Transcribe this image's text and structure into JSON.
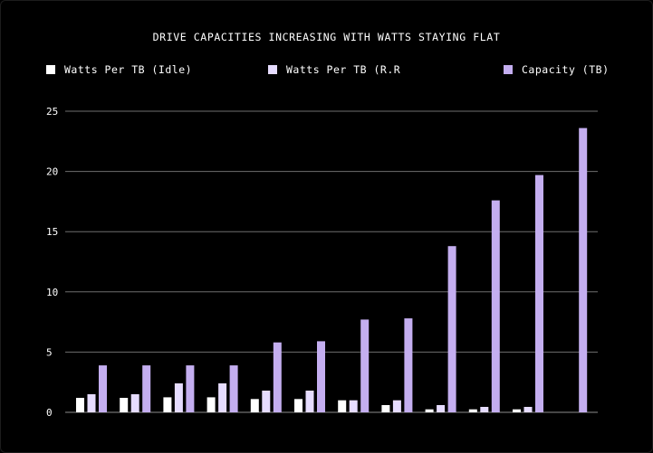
{
  "chart_data": {
    "type": "bar",
    "title": "DRIVE CAPACITIES INCREASING WITH WATTS STAYING FLAT",
    "xlabel": "",
    "ylabel": "",
    "ylim": [
      0,
      25
    ],
    "yticks": [
      0,
      5,
      10,
      15,
      20,
      25
    ],
    "grid": true,
    "legend_position": "top",
    "categories": [
      "",
      "",
      "",
      "",
      "",
      "",
      "",
      "",
      "",
      "",
      "",
      ""
    ],
    "series": [
      {
        "name": "Watts Per TB (Idle)",
        "color": "#ffffff",
        "values": [
          1.2,
          1.2,
          1.25,
          1.25,
          1.1,
          1.1,
          1.0,
          0.6,
          0.25,
          0.25,
          0.25,
          null
        ]
      },
      {
        "name": "Watts Per TB (R.R",
        "color": "#e6dcff",
        "values": [
          1.5,
          1.5,
          2.4,
          2.4,
          1.8,
          1.8,
          1.0,
          1.0,
          0.6,
          0.45,
          0.45,
          null
        ]
      },
      {
        "name": "Capacity (TB)",
        "color": "#c4aef0",
        "values": [
          3.9,
          3.9,
          3.9,
          3.9,
          5.8,
          5.9,
          7.7,
          7.8,
          13.8,
          17.6,
          19.7,
          23.6
        ]
      }
    ]
  }
}
